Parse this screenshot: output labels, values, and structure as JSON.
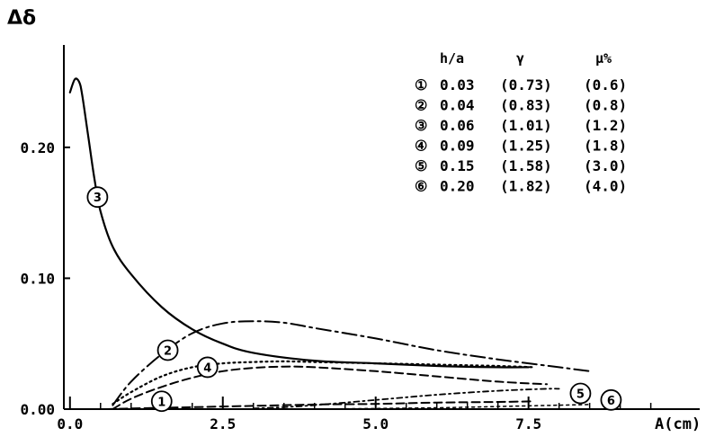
{
  "chart_data": {
    "type": "line",
    "title": "",
    "ylabel": "Δδ",
    "xlabel": "A(cm)",
    "xlim": [
      -0.1,
      10.3
    ],
    "ylim": [
      0.0,
      0.27
    ],
    "x_ticks": [
      {
        "value": 0.0,
        "label": "0.0"
      },
      {
        "value": 2.5,
        "label": "2.5"
      },
      {
        "value": 5.0,
        "label": "5.0"
      },
      {
        "value": 7.5,
        "label": "7.5"
      }
    ],
    "y_ticks": [
      {
        "value": 0.0,
        "label": "0.00"
      },
      {
        "value": 0.1,
        "label": "0.10"
      },
      {
        "value": 0.2,
        "label": "0.20"
      }
    ],
    "legend": {
      "position": "top-right",
      "headers": [
        "h/a",
        "γ",
        "μ%"
      ],
      "rows": [
        {
          "symbol": "①",
          "ha": "0.03",
          "gamma": "(0.73)",
          "mu": "(0.6)"
        },
        {
          "symbol": "②",
          "ha": "0.04",
          "gamma": "(0.83)",
          "mu": "(0.8)"
        },
        {
          "symbol": "③",
          "ha": "0.06",
          "gamma": "(1.01)",
          "mu": "(1.2)"
        },
        {
          "symbol": "④",
          "ha": "0.09",
          "gamma": "(1.25)",
          "mu": "(1.8)"
        },
        {
          "symbol": "⑤",
          "ha": "0.15",
          "gamma": "(1.58)",
          "mu": "(3.0)"
        },
        {
          "symbol": "⑥",
          "ha": "0.20",
          "gamma": "(1.82)",
          "mu": "(4.0)"
        }
      ]
    },
    "series": [
      {
        "name": "①",
        "label_text": "1",
        "dash": "9,5",
        "stroke_width": 2.0,
        "label_at": [
          1.5,
          0.006
        ],
        "x": [
          0.6,
          1.0,
          1.5,
          2.0,
          2.5,
          3.0,
          4.0,
          5.0,
          6.0,
          7.0,
          7.6
        ],
        "y": [
          0.0,
          0.0005,
          0.001,
          0.0015,
          0.002,
          0.0025,
          0.0035,
          0.004,
          0.005,
          0.0055,
          0.006
        ]
      },
      {
        "name": "②",
        "label_text": "2",
        "dash": "16,5,3,5",
        "stroke_width": 2.0,
        "label_at": [
          1.6,
          0.045
        ],
        "x": [
          0.7,
          1.0,
          1.5,
          2.0,
          2.5,
          3.0,
          3.5,
          4.0,
          5.0,
          6.0,
          7.0,
          8.0,
          8.5
        ],
        "y": [
          0.003,
          0.021,
          0.042,
          0.058,
          0.0655,
          0.0672,
          0.066,
          0.062,
          0.054,
          0.045,
          0.038,
          0.032,
          0.029
        ]
      },
      {
        "name": "③",
        "label_text": "3",
        "dash": "",
        "stroke_width": 2.2,
        "label_at": [
          0.45,
          0.162
        ],
        "x": [
          0.0,
          0.08,
          0.15,
          0.2,
          0.3,
          0.4,
          0.5,
          0.7,
          1.0,
          1.5,
          2.0,
          2.5,
          3.0,
          4.0,
          5.0,
          6.0,
          7.0,
          7.5
        ],
        "y": [
          0.242,
          0.252,
          0.25,
          0.24,
          0.208,
          0.176,
          0.151,
          0.124,
          0.103,
          0.078,
          0.061,
          0.05,
          0.043,
          0.037,
          0.035,
          0.033,
          0.032,
          0.032
        ]
      },
      {
        "name": "④",
        "label_text": "4",
        "dash": "2,4",
        "stroke_width": 2.2,
        "label_at": [
          2.25,
          0.032
        ],
        "x": [
          0.7,
          1.0,
          1.5,
          2.0,
          2.5,
          3.0,
          3.5,
          4.0,
          5.0,
          6.0,
          7.0,
          7.6
        ],
        "y": [
          0.004,
          0.013,
          0.025,
          0.032,
          0.035,
          0.036,
          0.0365,
          0.036,
          0.035,
          0.034,
          0.033,
          0.032
        ]
      },
      {
        "name": "⑤",
        "label_text": "5",
        "dash": "6,4,2,4",
        "stroke_width": 1.8,
        "label_at": [
          8.35,
          0.012
        ],
        "x": [
          3.0,
          3.5,
          4.0,
          5.0,
          6.0,
          7.0,
          7.8,
          8.0
        ],
        "y": [
          0.0005,
          0.0015,
          0.003,
          0.007,
          0.011,
          0.014,
          0.0155,
          0.0155
        ]
      },
      {
        "name": "⑥",
        "label_text": "6",
        "dash": "3,4",
        "stroke_width": 1.5,
        "label_at": [
          8.85,
          0.007
        ],
        "x": [
          4.0,
          5.0,
          6.0,
          7.0,
          8.0,
          8.5
        ],
        "y": [
          0.0,
          0.0005,
          0.001,
          0.002,
          0.003,
          0.0035
        ]
      },
      {
        "name": "",
        "label_text": "",
        "dash": "9,5",
        "stroke_width": 2.0,
        "label_at": null,
        "x": [
          0.7,
          1.0,
          1.5,
          2.0,
          2.5,
          3.0,
          3.5,
          4.0,
          5.0,
          6.0,
          7.0,
          7.8
        ],
        "y": [
          0.0,
          0.008,
          0.017,
          0.024,
          0.029,
          0.0315,
          0.0325,
          0.032,
          0.029,
          0.025,
          0.021,
          0.019
        ]
      }
    ]
  }
}
